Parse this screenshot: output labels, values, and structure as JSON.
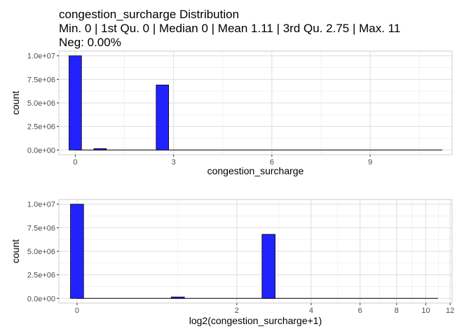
{
  "title": {
    "line1": "congestion_surcharge Distribution",
    "line2": "Min. 0 | 1st Qu. 0 | Median 0 | Mean 1.11 | 3rd Qu. 2.75 | Max. 11",
    "line3": "Neg: 0.00%"
  },
  "colors": {
    "bar_fill": "#2222ff",
    "bar_stroke": "#000000",
    "panel_border": "#cccccc",
    "grid_major": "#dedede",
    "grid_minor": "#efefef"
  },
  "chart_data": [
    {
      "type": "bar",
      "xlabel": "congestion_surcharge",
      "ylabel": "count",
      "xlim": [
        -0.5,
        11.5
      ],
      "ylim": [
        -500000,
        10500000
      ],
      "bin_width": 0.38,
      "grid": true,
      "x_ticks": [
        {
          "value": 0,
          "label": "0"
        },
        {
          "value": 3,
          "label": "3"
        },
        {
          "value": 6,
          "label": "6"
        },
        {
          "value": 9,
          "label": "9"
        }
      ],
      "y_ticks": [
        {
          "value": 0,
          "label": "0.0e+00"
        },
        {
          "value": 2500000,
          "label": "2.5e+06"
        },
        {
          "value": 5000000,
          "label": "5.0e+06"
        },
        {
          "value": 7500000,
          "label": "7.5e+06"
        },
        {
          "value": 10000000,
          "label": "1.0e+07"
        }
      ],
      "bars": [
        {
          "x": 0.0,
          "y": 10000000
        },
        {
          "x": 0.76,
          "y": 150000
        },
        {
          "x": 2.66,
          "y": 6900000
        }
      ],
      "baseline_to": 11.2
    },
    {
      "type": "bar",
      "xlabel": "log2(congestion_surcharge+1)",
      "ylabel": "count",
      "scale": "log2",
      "xlim": [
        -0.18,
        3.72
      ],
      "ylim": [
        -500000,
        10500000
      ],
      "bin_width": 0.13,
      "grid": true,
      "x_ticks": [
        {
          "value": 0,
          "label": "0"
        },
        {
          "value": 2,
          "label": "2"
        },
        {
          "value": 4,
          "label": "4"
        },
        {
          "value": 6,
          "label": "6"
        },
        {
          "value": 8,
          "label": "8"
        },
        {
          "value": 10,
          "label": "10"
        },
        {
          "value": 12,
          "label": "12"
        }
      ],
      "y_ticks": [
        {
          "value": 0,
          "label": "0.0e+00"
        },
        {
          "value": 2500000,
          "label": "2.5e+06"
        },
        {
          "value": 5000000,
          "label": "5.0e+06"
        },
        {
          "value": 7500000,
          "label": "7.5e+06"
        },
        {
          "value": 10000000,
          "label": "1.0e+07"
        }
      ],
      "bars": [
        {
          "x": 0.0,
          "y": 10000000
        },
        {
          "x": 1.0,
          "y": 150000
        },
        {
          "x": 1.9,
          "y": 6800000
        }
      ],
      "baseline_to": 3.58
    }
  ]
}
